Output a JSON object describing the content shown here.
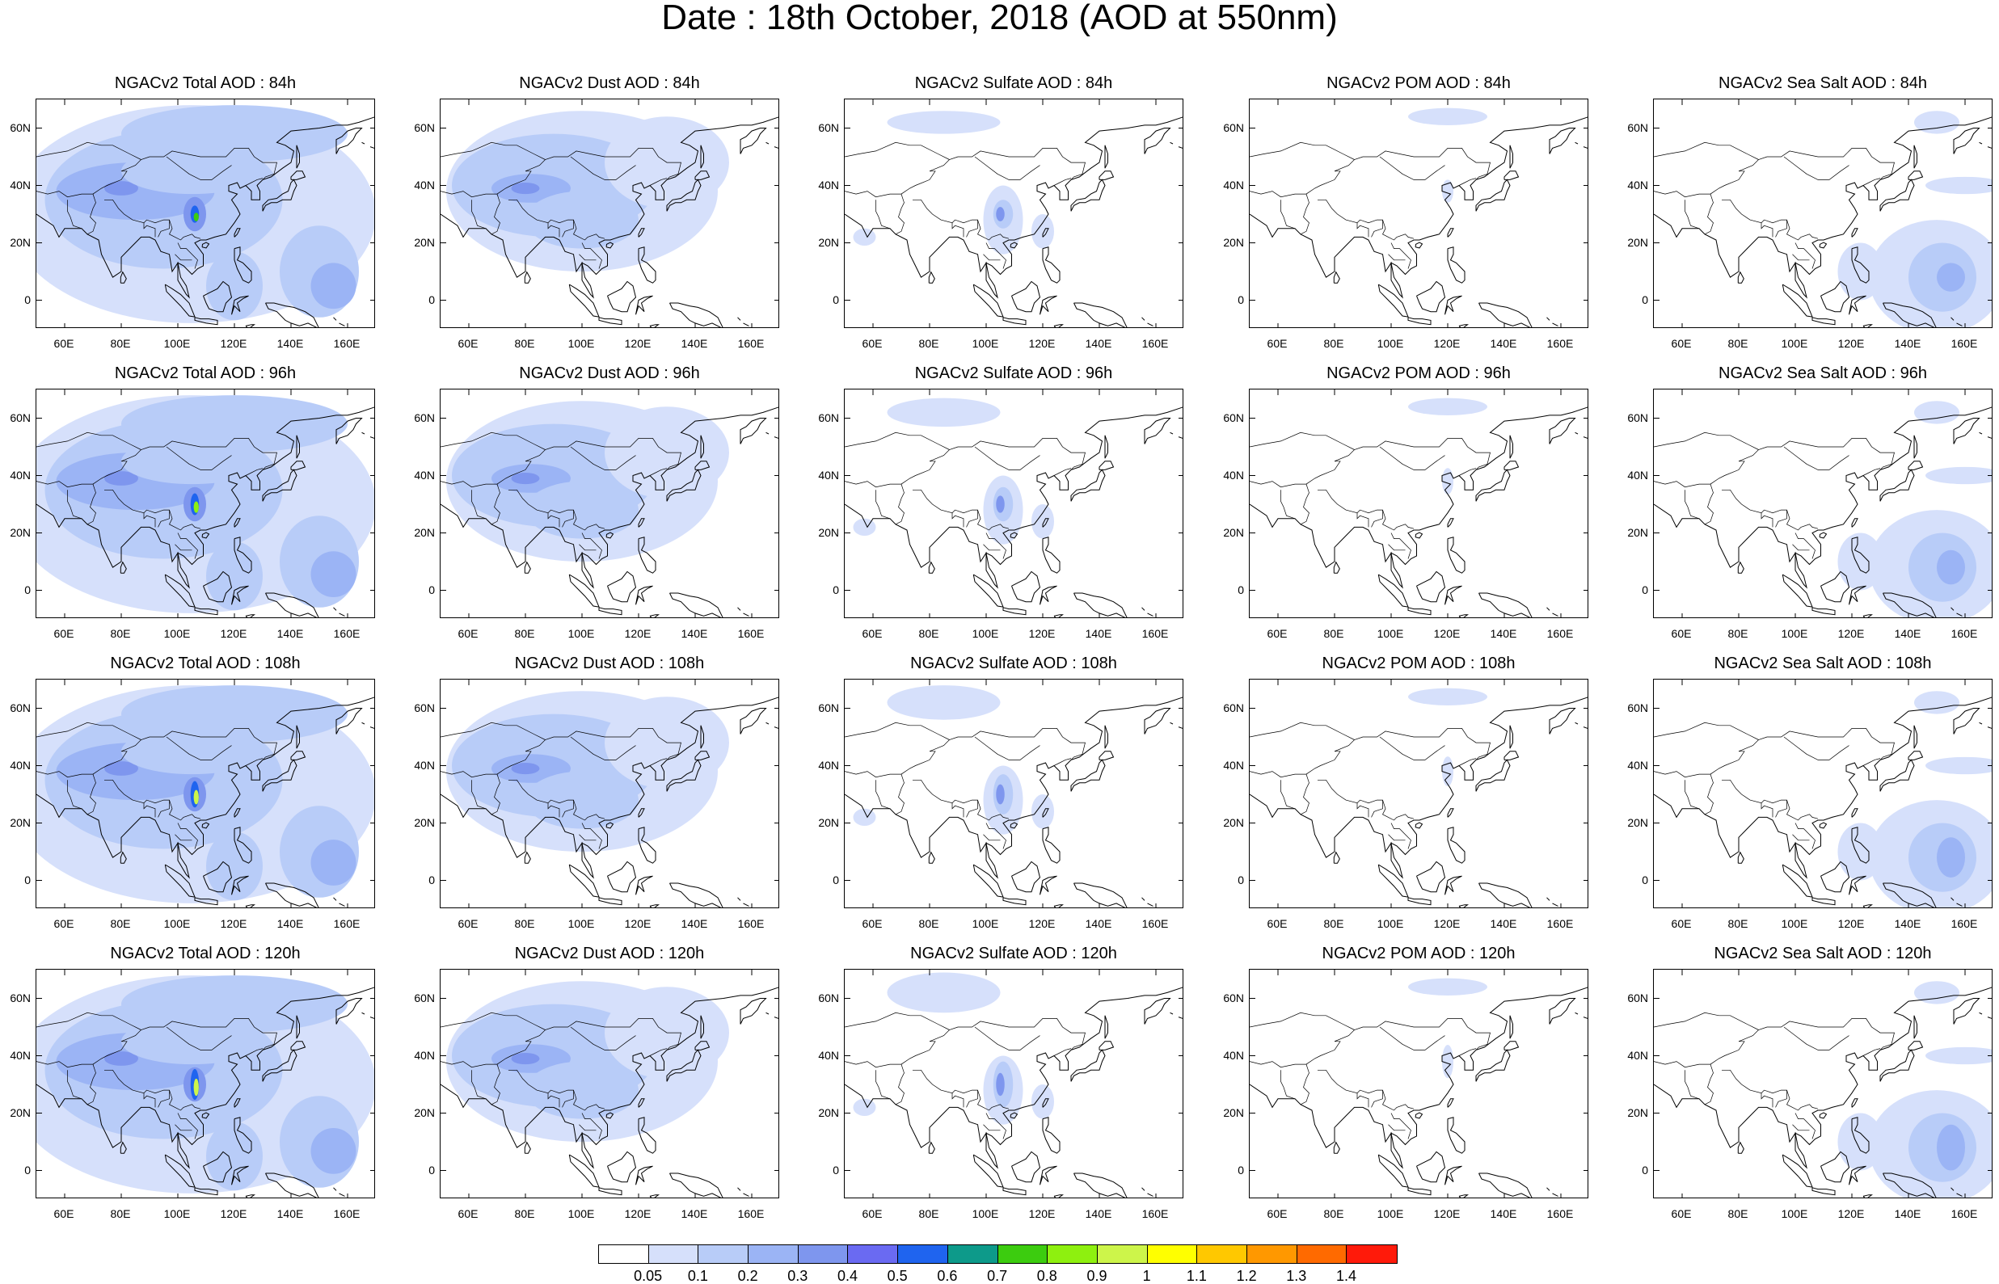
{
  "title": "Date : 18th October, 2018 (AOD at 550nm)",
  "lat_ticks": [
    "60N",
    "40N",
    "20N",
    "0"
  ],
  "lon_ticks": [
    "60E",
    "80E",
    "100E",
    "120E",
    "140E",
    "160E"
  ],
  "colorbar": {
    "labels": [
      "0.05",
      "0.1",
      "0.2",
      "0.3",
      "0.4",
      "0.5",
      "0.6",
      "0.7",
      "0.8",
      "0.9",
      "1",
      "1.1",
      "1.2",
      "1.3",
      "1.4"
    ],
    "colors": [
      "#ffffff",
      "#d6e0fb",
      "#b8ccf8",
      "#9bb4f5",
      "#7e96ee",
      "#6a6af2",
      "#1f64ef",
      "#0d9a8a",
      "#3ccc0f",
      "#8ef00f",
      "#cdf54a",
      "#ffff00",
      "#ffc800",
      "#ff9800",
      "#ff6a00",
      "#ff1a0a"
    ]
  },
  "panels": [
    [
      {
        "title": "NGACv2 Total AOD : 84h",
        "species": "total"
      },
      {
        "title": "NGACv2 Dust AOD : 84h",
        "species": "dust"
      },
      {
        "title": "NGACv2 Sulfate AOD : 84h",
        "species": "sulfate"
      },
      {
        "title": "NGACv2 POM AOD : 84h",
        "species": "pom"
      },
      {
        "title": "NGACv2 Sea Salt AOD : 84h",
        "species": "seasalt"
      }
    ],
    [
      {
        "title": "NGACv2 Total AOD : 96h",
        "species": "total"
      },
      {
        "title": "NGACv2 Dust AOD : 96h",
        "species": "dust"
      },
      {
        "title": "NGACv2 Sulfate AOD : 96h",
        "species": "sulfate"
      },
      {
        "title": "NGACv2 POM AOD : 96h",
        "species": "pom"
      },
      {
        "title": "NGACv2 Sea Salt AOD : 96h",
        "species": "seasalt"
      }
    ],
    [
      {
        "title": "NGACv2 Total AOD : 108h",
        "species": "total"
      },
      {
        "title": "NGACv2 Dust AOD : 108h",
        "species": "dust"
      },
      {
        "title": "NGACv2 Sulfate AOD : 108h",
        "species": "sulfate"
      },
      {
        "title": "NGACv2 POM AOD : 108h",
        "species": "pom"
      },
      {
        "title": "NGACv2 Sea Salt AOD : 108h",
        "species": "seasalt"
      }
    ],
    [
      {
        "title": "NGACv2 Total AOD : 120h",
        "species": "total"
      },
      {
        "title": "NGACv2 Dust AOD : 120h",
        "species": "dust"
      },
      {
        "title": "NGACv2 Sulfate AOD : 120h",
        "species": "sulfate"
      },
      {
        "title": "NGACv2 POM AOD : 120h",
        "species": "pom"
      },
      {
        "title": "NGACv2 Sea Salt  AOD : 120h",
        "species": "seasalt"
      }
    ]
  ]
}
